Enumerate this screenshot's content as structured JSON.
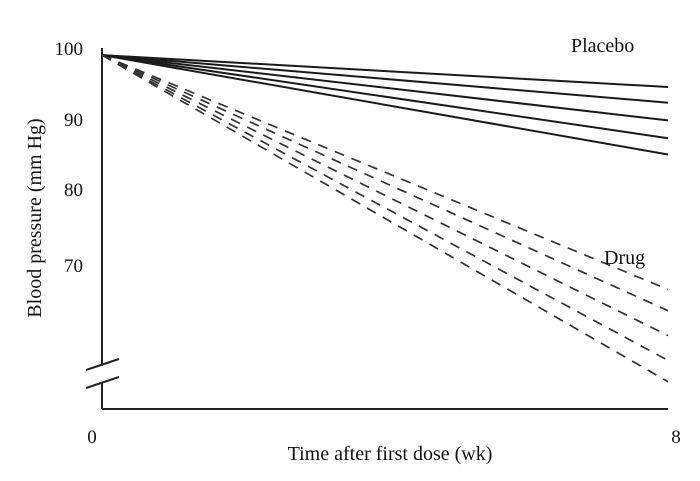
{
  "chart_data": {
    "type": "line",
    "xlabel": "Time after first dose (wk)",
    "ylabel": "Blood pressure (mm Hg)",
    "xlim": [
      0,
      8
    ],
    "ylim": [
      70,
      100
    ],
    "x_ticks": [
      "0",
      "8"
    ],
    "y_ticks": [
      "100",
      "90",
      "80",
      "70"
    ],
    "y_axis_break": true,
    "grid": false,
    "legend": "none",
    "groups": [
      {
        "label": "Placebo",
        "line_style": "solid",
        "series": [
          {
            "x": [
              0,
              8
            ],
            "y": [
              99,
              94.5
            ]
          },
          {
            "x": [
              0,
              8
            ],
            "y": [
              99,
              92.3
            ]
          },
          {
            "x": [
              0,
              8
            ],
            "y": [
              99,
              89.8
            ]
          },
          {
            "x": [
              0,
              8
            ],
            "y": [
              99,
              87.3
            ]
          },
          {
            "x": [
              0,
              8
            ],
            "y": [
              99,
              85
            ]
          }
        ]
      },
      {
        "label": "Drug",
        "line_style": "dashed",
        "series": [
          {
            "x": [
              0,
              8
            ],
            "y": [
              99,
              66
            ]
          },
          {
            "x": [
              0,
              8
            ],
            "y": [
              99,
              63
            ]
          },
          {
            "x": [
              0,
              8
            ],
            "y": [
              99,
              59.5
            ]
          },
          {
            "x": [
              0,
              8
            ],
            "y": [
              99,
              56
            ]
          },
          {
            "x": [
              0,
              8
            ],
            "y": [
              99,
              53
            ]
          }
        ]
      }
    ]
  }
}
